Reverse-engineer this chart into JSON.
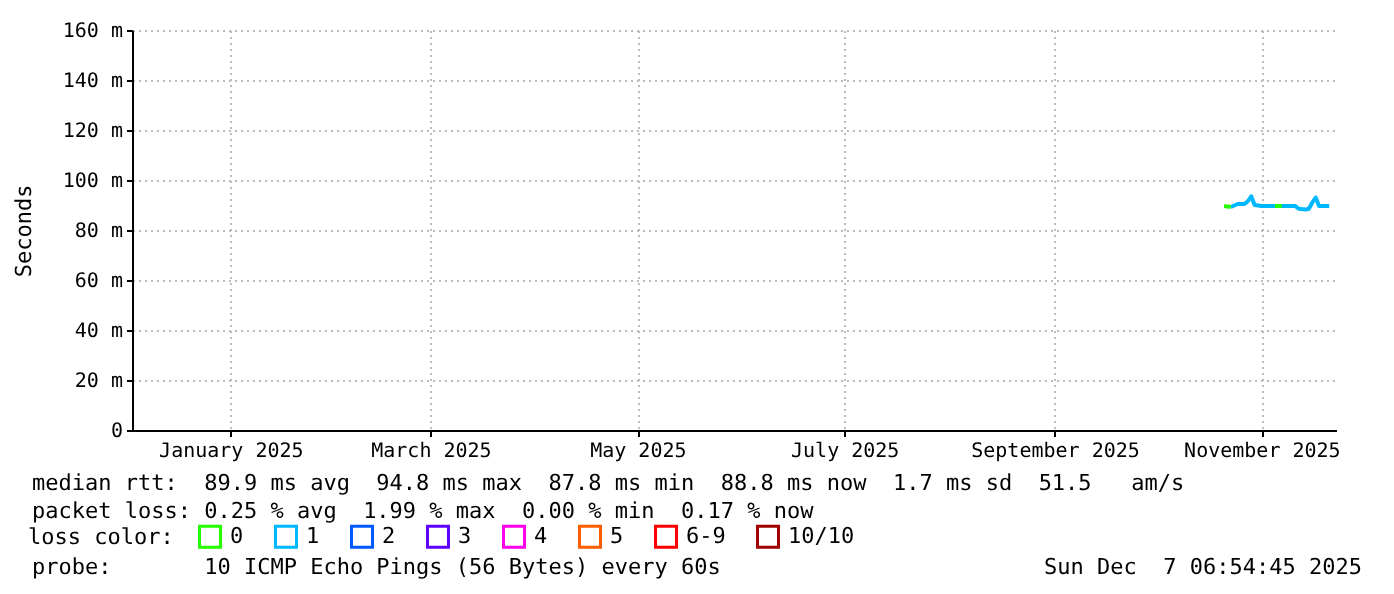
{
  "chart_data": {
    "type": "line",
    "ylabel": "Seconds",
    "legend_title": "loss color:",
    "legend": "bottom left",
    "grid": true,
    "marker": "none",
    "line_style": "solid",
    "xlim": [
      "2024-12-17",
      "2025-12-07"
    ],
    "xticks": [
      {
        "value": "2025-01-15",
        "label": "January 2025"
      },
      {
        "value": "2025-03-15",
        "label": "March 2025"
      },
      {
        "value": "2025-05-15",
        "label": "May 2025"
      },
      {
        "value": "2025-07-15",
        "label": "July 2025"
      },
      {
        "value": "2025-09-15",
        "label": "September 2025"
      },
      {
        "value": "2025-11-15",
        "label": "November 2025"
      }
    ],
    "ylim": [
      0,
      160
    ],
    "yticks": [
      0,
      {
        "value": 20,
        "label": "20 m"
      },
      {
        "value": 40,
        "label": "40 m"
      },
      {
        "value": 60,
        "label": "60 m"
      },
      {
        "value": 80,
        "label": "80 m"
      },
      {
        "value": 100,
        "label": "100 m"
      },
      {
        "value": 120,
        "label": "120 m"
      },
      {
        "value": 140,
        "label": "140 m"
      },
      {
        "value": 160,
        "label": "160 m"
      }
    ],
    "x": [
      "2025-11-06",
      "2025-11-08",
      "2025-11-10",
      "2025-11-11",
      "2025-11-12",
      "2025-11-13",
      "2025-11-15",
      "2025-11-20",
      "2025-11-25",
      "2025-11-26",
      "2025-11-28",
      "2025-11-29",
      "2025-11-30",
      "2025-12-01",
      "2025-12-02",
      "2025-12-05"
    ],
    "series": [
      {
        "name": "0",
        "color": "#26ff00",
        "x": [
          "2025-11-04",
          "2025-11-06",
          "2025-11-18",
          "2025-11-19",
          "2025-11-21"
        ],
        "values": [
          89.6,
          89.2,
          null,
          89.6,
          89.6
        ]
      },
      {
        "name": "1",
        "color": "#00b8ff",
        "values": [
          89.2,
          90.4,
          90.4,
          91.5,
          93.5,
          90.0,
          89.6,
          89.6,
          89.6,
          88.5,
          88.2,
          88.5,
          91.0,
          93.0,
          89.6,
          89.6
        ]
      },
      {
        "name": "2",
        "color": "#0059ff",
        "values": [
          null,
          null,
          null,
          null,
          null,
          null,
          null,
          null,
          null,
          null,
          null,
          null,
          null,
          null,
          null,
          null
        ]
      },
      {
        "name": "3",
        "color": "#5e00ff",
        "values": [
          null,
          null,
          null,
          null,
          null,
          null,
          null,
          null,
          null,
          null,
          null,
          null,
          null,
          null,
          null,
          null
        ]
      },
      {
        "name": "4",
        "color": "#ff00ea",
        "values": [
          null,
          null,
          null,
          null,
          null,
          null,
          null,
          null,
          null,
          null,
          null,
          null,
          null,
          null,
          null,
          null
        ]
      },
      {
        "name": "5",
        "color": "#ff5e00",
        "values": [
          null,
          null,
          null,
          null,
          null,
          null,
          null,
          null,
          null,
          null,
          null,
          null,
          null,
          null,
          null,
          null
        ]
      },
      {
        "name": "6-9",
        "color": "#ff0000",
        "values": [
          null,
          null,
          null,
          null,
          null,
          null,
          null,
          null,
          null,
          null,
          null,
          null,
          null,
          null,
          null,
          null
        ]
      },
      {
        "name": "10/10",
        "color": "#a10000",
        "values": [
          null,
          null,
          null,
          null,
          null,
          null,
          null,
          null,
          null,
          null,
          null,
          null,
          null,
          null,
          null,
          null
        ]
      }
    ],
    "annotations": [
      "median rtt:  89.9 ms avg  94.8 ms max  87.8 ms min  88.8 ms now  1.7 ms sd  51.5   am/s",
      "packet loss: 0.25 % avg  1.99 % max  0.00 % min  0.17 % now",
      "probe:       10 ICMP Echo Pings (56 Bytes) every 60s",
      "Sun Dec  7 06:54:45 2025"
    ]
  }
}
